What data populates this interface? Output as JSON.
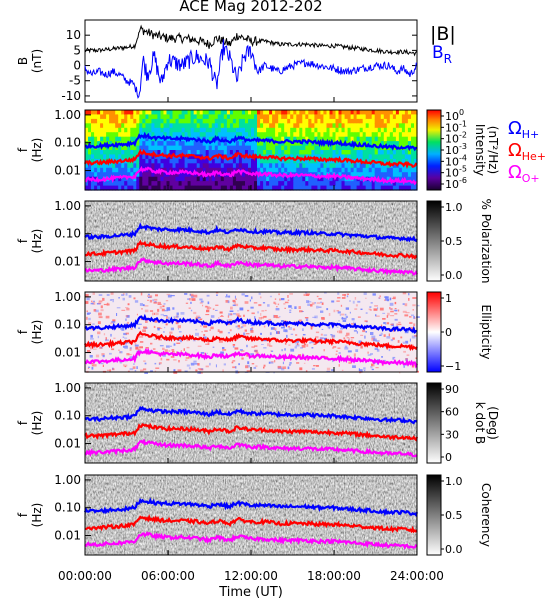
{
  "title": "ACE Mag 2012-202",
  "colors": {
    "B_total": "#000000",
    "B_R": "#0000ff",
    "gyro_H": "#0000ff",
    "gyro_He": "#ff0000",
    "gyro_O": "#ff00ff",
    "frame": "#000000"
  },
  "chart_data": [
    {
      "type": "line",
      "name": "magnetic-field",
      "ylabel_lines": [
        "B",
        "(nT)"
      ],
      "ylim": [
        -12,
        15
      ],
      "yticks": [
        -10,
        -5,
        0,
        5,
        10
      ],
      "xlim_hours": [
        0,
        24
      ],
      "legend": {
        "total": "|B|",
        "radial": "B",
        "radial_sub": "R",
        "placement": "right"
      },
      "series": [
        {
          "key": "B_total",
          "x_hours": [
            0,
            1,
            2,
            3,
            3.6,
            4.0,
            4.5,
            5,
            6,
            7,
            8,
            9,
            9.5,
            10,
            10.5,
            11,
            12,
            13,
            14,
            15,
            16,
            17,
            18,
            19,
            20,
            21,
            22,
            23,
            24
          ],
          "values": [
            5,
            5,
            5.5,
            6,
            6.5,
            12,
            11,
            10,
            9,
            9,
            8.5,
            7,
            9,
            8,
            7,
            10,
            8,
            8,
            7,
            7,
            7,
            6.5,
            6.5,
            6,
            5.5,
            5,
            4.5,
            4.5,
            4
          ]
        },
        {
          "key": "B_R",
          "x_hours": [
            0,
            0.5,
            1,
            1.5,
            2,
            2.5,
            3,
            3.5,
            3.9,
            4.2,
            4.5,
            5,
            5.5,
            6,
            7,
            8,
            9,
            9.5,
            10,
            10.5,
            11,
            11.5,
            12,
            12.5,
            13,
            14,
            15,
            16,
            17,
            18,
            19,
            20,
            21,
            22,
            22.5,
            23,
            23.5,
            24
          ],
          "values": [
            -1,
            -3,
            -2,
            -3,
            -2,
            -3,
            -5,
            -6,
            -10,
            2,
            -3,
            3,
            -6,
            2,
            0,
            3,
            1,
            -7,
            6,
            2,
            -5,
            3,
            5,
            -2,
            0,
            -2,
            0,
            1,
            0,
            -1,
            -2,
            -1,
            0,
            0,
            -2,
            -1,
            -3,
            0
          ]
        }
      ]
    },
    {
      "type": "heatmap",
      "name": "intensity-spectrogram",
      "ylabel_lines": [
        "f",
        "(Hz)"
      ],
      "ylim_log": [
        0.002,
        1.5
      ],
      "yticks": [
        "1.00",
        "0.10",
        "0.01"
      ],
      "colorbar": {
        "colormap": "rainbow",
        "label_lines": [
          "Intensity",
          "(nT²/Hz)"
        ],
        "ticks": [
          {
            "base": "10",
            "exp": "0"
          },
          {
            "base": "10",
            "exp": "-1"
          },
          {
            "base": "10",
            "exp": "-2"
          },
          {
            "base": "10",
            "exp": "-3"
          },
          {
            "base": "10",
            "exp": "-4"
          },
          {
            "base": "10",
            "exp": "-5"
          },
          {
            "base": "10",
            "exp": "-6"
          }
        ]
      },
      "legend": [
        {
          "symbol": "Ω",
          "sub": "H+",
          "color_key": "gyro_H"
        },
        {
          "symbol": "Ω",
          "sub": "He+",
          "color_key": "gyro_He"
        },
        {
          "symbol": "Ω",
          "sub": "O+",
          "color_key": "gyro_O"
        }
      ]
    },
    {
      "type": "heatmap",
      "name": "polarization-spectrogram",
      "ylabel_lines": [
        "f",
        "(Hz)"
      ],
      "yticks": [
        "1.00",
        "0.10",
        "0.01"
      ],
      "colorbar": {
        "colormap": "gray",
        "label_lines": [
          "% Polarization"
        ],
        "ticks": [
          "1.0",
          "0.5",
          "0.0"
        ]
      }
    },
    {
      "type": "heatmap",
      "name": "ellipticity-spectrogram",
      "ylabel_lines": [
        "f",
        "(Hz)"
      ],
      "yticks": [
        "1.00",
        "0.10",
        "0.01"
      ],
      "colorbar": {
        "colormap": "blue-white-red",
        "label_lines": [
          "Ellipticity"
        ],
        "ticks": [
          "1",
          "0",
          "−1"
        ]
      }
    },
    {
      "type": "heatmap",
      "name": "k-dot-b-spectrogram",
      "ylabel_lines": [
        "f",
        "(Hz)"
      ],
      "yticks": [
        "1.00",
        "0.10",
        "0.01"
      ],
      "colorbar": {
        "colormap": "gray",
        "label_lines": [
          "k dot B",
          "(Deg)"
        ],
        "ticks": [
          "90",
          "60",
          "30",
          "0"
        ]
      }
    },
    {
      "type": "heatmap",
      "name": "coherency-spectrogram",
      "ylabel_lines": [
        "f",
        "(Hz)"
      ],
      "yticks": [
        "1.00",
        "0.10",
        "0.01"
      ],
      "colorbar": {
        "colormap": "gray",
        "label_lines": [
          "Coherency"
        ],
        "ticks": [
          "1.0",
          "0.5",
          "0.0"
        ]
      }
    }
  ],
  "gyrofrequency_lines_hz": {
    "x_hours": [
      0,
      1,
      2,
      3,
      3.6,
      4.0,
      4.5,
      5,
      6,
      7,
      8,
      9,
      9.5,
      10,
      10.5,
      11,
      12,
      13,
      14,
      15,
      16,
      17,
      18,
      19,
      20,
      21,
      22,
      23,
      24
    ],
    "H+": [
      0.076,
      0.076,
      0.084,
      0.09,
      0.1,
      0.18,
      0.17,
      0.15,
      0.14,
      0.14,
      0.13,
      0.11,
      0.14,
      0.12,
      0.11,
      0.15,
      0.12,
      0.12,
      0.11,
      0.11,
      0.11,
      0.1,
      0.1,
      0.09,
      0.084,
      0.076,
      0.069,
      0.069,
      0.061
    ],
    "He+": [
      0.019,
      0.019,
      0.021,
      0.023,
      0.025,
      0.046,
      0.042,
      0.038,
      0.034,
      0.034,
      0.032,
      0.027,
      0.034,
      0.031,
      0.027,
      0.038,
      0.031,
      0.031,
      0.027,
      0.027,
      0.027,
      0.025,
      0.025,
      0.023,
      0.021,
      0.019,
      0.017,
      0.017,
      0.015
    ],
    "O+": [
      0.0048,
      0.0048,
      0.0052,
      0.0057,
      0.0062,
      0.011,
      0.011,
      0.0095,
      0.0086,
      0.0086,
      0.0081,
      0.0067,
      0.0086,
      0.0076,
      0.0067,
      0.0095,
      0.0076,
      0.0076,
      0.0067,
      0.0067,
      0.0067,
      0.0062,
      0.0062,
      0.0057,
      0.0052,
      0.0048,
      0.0043,
      0.0043,
      0.0038
    ]
  },
  "x_axis": {
    "label": "Time (UT)",
    "tick_labels": [
      "00:00:00",
      "06:00:00",
      "12:00:00",
      "18:00:00",
      "24:00:00"
    ],
    "tick_hours": [
      0,
      6,
      12,
      18,
      24
    ]
  }
}
